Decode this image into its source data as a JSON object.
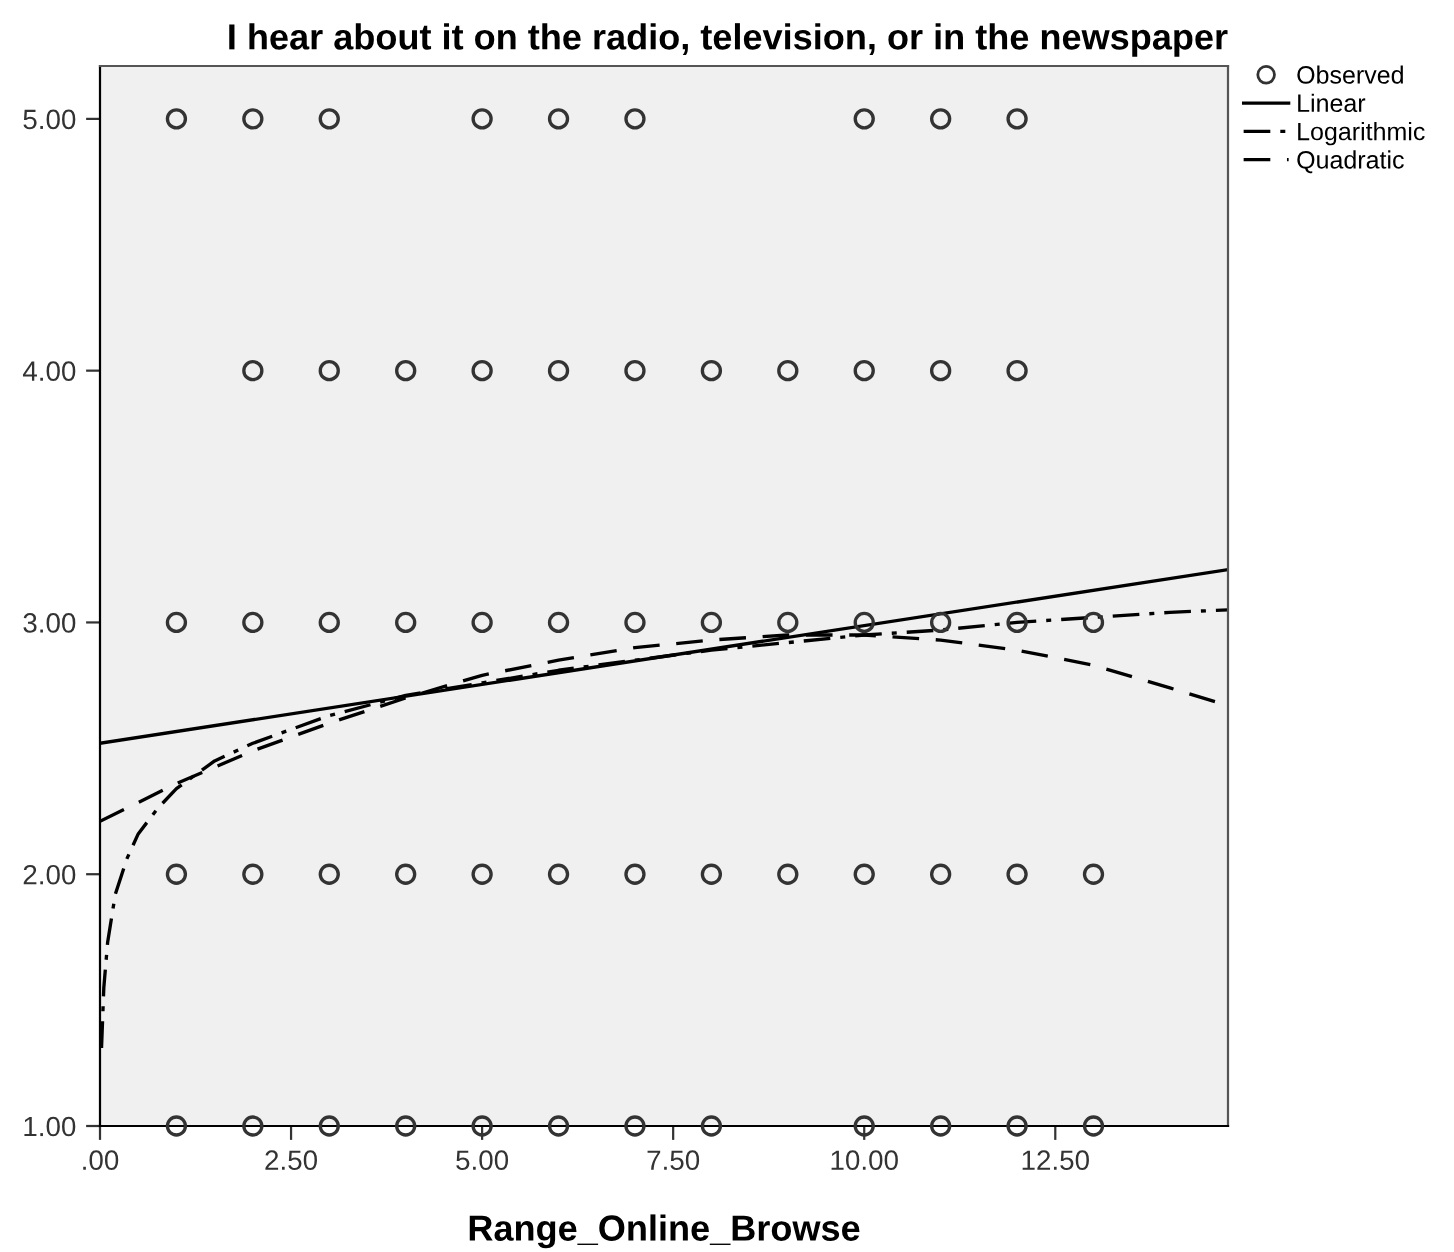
{
  "chart_data": {
    "type": "scatter",
    "title": "I hear about it on the radio, television, or in the newspaper",
    "xlabel": "Range_Online_Browse",
    "xlim": [
      0,
      14.76
    ],
    "ylim": [
      1,
      5.21
    ],
    "xticks": [
      {
        "value": 0,
        "label": ".00"
      },
      {
        "value": 2.5,
        "label": "2.50"
      },
      {
        "value": 5,
        "label": "5.00"
      },
      {
        "value": 7.5,
        "label": "7.50"
      },
      {
        "value": 10,
        "label": "10.00"
      },
      {
        "value": 12.5,
        "label": "12.50"
      }
    ],
    "yticks": [
      {
        "value": 1,
        "label": "1.00"
      },
      {
        "value": 2,
        "label": "2.00"
      },
      {
        "value": 3,
        "label": "3.00"
      },
      {
        "value": 4,
        "label": "4.00"
      },
      {
        "value": 5,
        "label": "5.00"
      }
    ],
    "grid": false,
    "legend": "top right",
    "series": [
      {
        "name": "Observed",
        "marker": "circle",
        "color": "#333333",
        "x": [
          1,
          2,
          3,
          5,
          6,
          7,
          10,
          11,
          12,
          2,
          3,
          4,
          5,
          6,
          7,
          8,
          9,
          10,
          11,
          12,
          1,
          2,
          3,
          4,
          5,
          6,
          7,
          8,
          9,
          10,
          11,
          12,
          13,
          1,
          2,
          3,
          4,
          5,
          6,
          7,
          8,
          9,
          10,
          11,
          12,
          13,
          1,
          2,
          3,
          4,
          5,
          6,
          7,
          8,
          10,
          11,
          12,
          13
        ],
        "values": [
          5,
          5,
          5,
          5,
          5,
          5,
          5,
          5,
          5,
          4,
          4,
          4,
          4,
          4,
          4,
          4,
          4,
          4,
          4,
          4,
          3,
          3,
          3,
          3,
          3,
          3,
          3,
          3,
          3,
          3,
          3,
          3,
          3,
          2,
          2,
          2,
          2,
          2,
          2,
          2,
          2,
          2,
          2,
          2,
          2,
          2,
          1,
          1,
          1,
          1,
          1,
          1,
          1,
          1,
          1,
          1,
          1,
          1
        ]
      },
      {
        "name": "Linear",
        "type": "line",
        "line_style": "solid",
        "color": "#000000",
        "x": [
          0,
          14.76
        ],
        "values": [
          2.52,
          3.21
        ]
      },
      {
        "name": "Logarithmic",
        "type": "line",
        "line_style": "dashdot",
        "color": "#000000",
        "x": [
          0.02,
          0.05,
          0.1,
          0.2,
          0.35,
          0.5,
          0.75,
          1,
          1.5,
          2,
          3,
          4,
          5,
          6,
          7,
          8,
          9,
          10,
          11,
          12,
          13,
          14,
          14.76
        ],
        "values": [
          1.31,
          1.55,
          1.73,
          1.92,
          2.06,
          2.16,
          2.26,
          2.34,
          2.45,
          2.52,
          2.63,
          2.71,
          2.76,
          2.81,
          2.85,
          2.89,
          2.92,
          2.95,
          2.97,
          3.0,
          3.02,
          3.04,
          3.05
        ]
      },
      {
        "name": "Quadratic",
        "type": "line",
        "line_style": "dashed",
        "color": "#000000",
        "x": [
          0,
          1,
          2,
          3,
          4,
          5,
          6,
          7,
          8,
          9,
          10,
          11,
          12,
          13,
          14,
          14.76
        ],
        "values": [
          2.21,
          2.36,
          2.49,
          2.6,
          2.7,
          2.79,
          2.85,
          2.9,
          2.93,
          2.95,
          2.95,
          2.93,
          2.89,
          2.83,
          2.74,
          2.67
        ]
      }
    ]
  }
}
